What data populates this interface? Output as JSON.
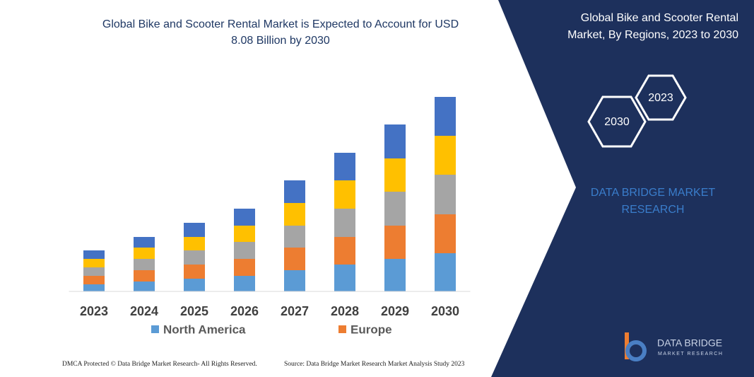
{
  "chart_data": {
    "type": "stacked_bar",
    "title": [
      "Global Bike and Scooter Rental Market is Expected to Account for USD",
      "8.08 Billion by 2030"
    ],
    "categories": [
      "2023",
      "2024",
      "2025",
      "2026",
      "2027",
      "2028",
      "2029",
      "2030"
    ],
    "series": [
      {
        "name": "North America",
        "color": "#5b9bd5",
        "values": [
          10,
          14,
          18,
          22,
          30,
          38,
          46,
          54
        ]
      },
      {
        "name": "Europe",
        "color": "#ed7d31",
        "values": [
          12,
          16,
          20,
          24,
          32,
          39,
          47,
          55
        ]
      },
      {
        "color": "#a5a5a5",
        "values": [
          12,
          16,
          20,
          24,
          31,
          40,
          48,
          56
        ]
      },
      {
        "color": "#ffc000",
        "values": [
          12,
          16,
          19,
          23,
          32,
          40,
          47,
          55
        ]
      },
      {
        "color": "#4472c4",
        "values": [
          12,
          15,
          20,
          24,
          32,
          39,
          48,
          55
        ]
      }
    ],
    "ylim": [
      0,
      275
    ]
  },
  "panel": {
    "title": [
      "Global Bike and Scooter Rental",
      "Market, By Regions, 2023 to 2030"
    ],
    "hexagons": [
      "2023",
      "2030"
    ],
    "brand": [
      "DATA BRIDGE MARKET",
      "RESEARCH"
    ]
  },
  "footer": {
    "left": "DMCA Protected © Data Bridge Market Research-  All Rights Reserved.",
    "right": "Source: Data Bridge Market Research  Market Analysis Study 2023"
  },
  "logo": {
    "name": "DATA BRIDGE",
    "sub": "MARKET RESEARCH"
  }
}
